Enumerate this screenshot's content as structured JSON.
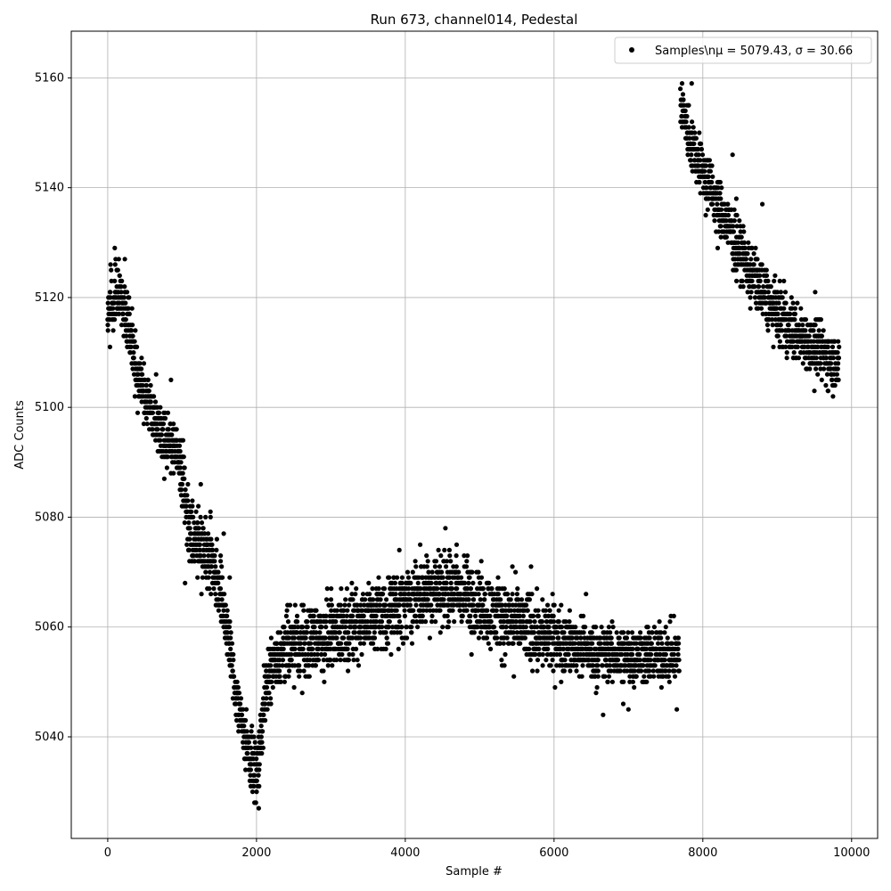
{
  "chart_data": {
    "type": "scatter",
    "title": "Run 673, channel014, Pedestal",
    "xlabel": "Sample #",
    "ylabel": "ADC Counts",
    "xlim": [
      -490,
      10350
    ],
    "ylim": [
      5021.5,
      5168.5
    ],
    "xticks": [
      0,
      2000,
      4000,
      6000,
      8000,
      10000
    ],
    "yticks": [
      5040,
      5060,
      5080,
      5100,
      5120,
      5140,
      5160
    ],
    "grid": true,
    "legend_position": "top-right",
    "marker_color": "#000000",
    "series": [
      {
        "name": "Samples\\nμ = 5079.43, σ = 30.66",
        "trend": {
          "x": [
            0,
            100,
            200,
            300,
            400,
            500,
            600,
            700,
            800,
            900,
            1000,
            1100,
            1200,
            1300,
            1400,
            1500,
            1600,
            1700,
            1800,
            1900,
            2000,
            2050,
            2100,
            2200,
            2300,
            2400,
            2600,
            2800,
            3000,
            3200,
            3400,
            3600,
            3800,
            4000,
            4200,
            4400,
            4600,
            4800,
            5000,
            5200,
            5400,
            5600,
            5800,
            6000,
            6200,
            6400,
            6600,
            6800,
            7000,
            7200,
            7400,
            7680,
            7700,
            7800,
            8000,
            8200,
            8400,
            8600,
            8800,
            9000,
            9200,
            9400,
            9600,
            9830
          ],
          "y": [
            5118,
            5120,
            5120,
            5115,
            5105,
            5102,
            5099,
            5096,
            5094,
            5093,
            5088,
            5078,
            5076,
            5074,
            5072,
            5068,
            5060,
            5050,
            5043,
            5037,
            5033,
            5038,
            5047,
            5052,
            5054,
            5056,
            5057,
            5058,
            5059,
            5060,
            5061,
            5062,
            5063,
            5064,
            5066,
            5067,
            5067,
            5066,
            5064,
            5062,
            5061,
            5060,
            5059,
            5058,
            5057,
            5056,
            5055,
            5055,
            5055,
            5055,
            5055,
            5055,
            5156,
            5150,
            5143,
            5137,
            5131,
            5126,
            5121,
            5117,
            5114,
            5112,
            5110,
            5108
          ],
          "spread": [
            4,
            4,
            4,
            4,
            4,
            4,
            4,
            4,
            4,
            4,
            5,
            5,
            5,
            5,
            5,
            5,
            4,
            4,
            4,
            4,
            4,
            4,
            4,
            4,
            4,
            5,
            5,
            5,
            5,
            5,
            5,
            5,
            5,
            5,
            5,
            5,
            5,
            5,
            5,
            5,
            5,
            5,
            5,
            5,
            4,
            4,
            4,
            4,
            4,
            4,
            4,
            4,
            4,
            4,
            4,
            4,
            4,
            4,
            4,
            4,
            4,
            4,
            4,
            4
          ]
        },
        "outliers": [
          {
            "x": 30,
            "y": 5111
          },
          {
            "x": 95,
            "y": 5129
          },
          {
            "x": 230,
            "y": 5127
          },
          {
            "x": 650,
            "y": 5106
          },
          {
            "x": 850,
            "y": 5105
          },
          {
            "x": 760,
            "y": 5087
          },
          {
            "x": 1040,
            "y": 5068
          },
          {
            "x": 1250,
            "y": 5086
          },
          {
            "x": 1560,
            "y": 5077
          },
          {
            "x": 1640,
            "y": 5069
          },
          {
            "x": 2030,
            "y": 5027
          },
          {
            "x": 2090,
            "y": 5038
          },
          {
            "x": 2520,
            "y": 5064
          },
          {
            "x": 2900,
            "y": 5052
          },
          {
            "x": 3230,
            "y": 5054
          },
          {
            "x": 3920,
            "y": 5074
          },
          {
            "x": 4200,
            "y": 5075
          },
          {
            "x": 4540,
            "y": 5078
          },
          {
            "x": 4690,
            "y": 5075
          },
          {
            "x": 4890,
            "y": 5055
          },
          {
            "x": 5460,
            "y": 5051
          },
          {
            "x": 5440,
            "y": 5071
          },
          {
            "x": 5690,
            "y": 5071
          },
          {
            "x": 6430,
            "y": 5066
          },
          {
            "x": 6660,
            "y": 5044
          },
          {
            "x": 6930,
            "y": 5046
          },
          {
            "x": 7000,
            "y": 5045
          },
          {
            "x": 7650,
            "y": 5045
          },
          {
            "x": 7850,
            "y": 5159
          },
          {
            "x": 8040,
            "y": 5135
          },
          {
            "x": 8200,
            "y": 5129
          },
          {
            "x": 8400,
            "y": 5146
          },
          {
            "x": 8450,
            "y": 5138
          },
          {
            "x": 8640,
            "y": 5118
          },
          {
            "x": 8800,
            "y": 5137
          },
          {
            "x": 9090,
            "y": 5123
          },
          {
            "x": 9500,
            "y": 5103
          },
          {
            "x": 9510,
            "y": 5121
          },
          {
            "x": 9750,
            "y": 5102
          }
        ]
      }
    ]
  }
}
